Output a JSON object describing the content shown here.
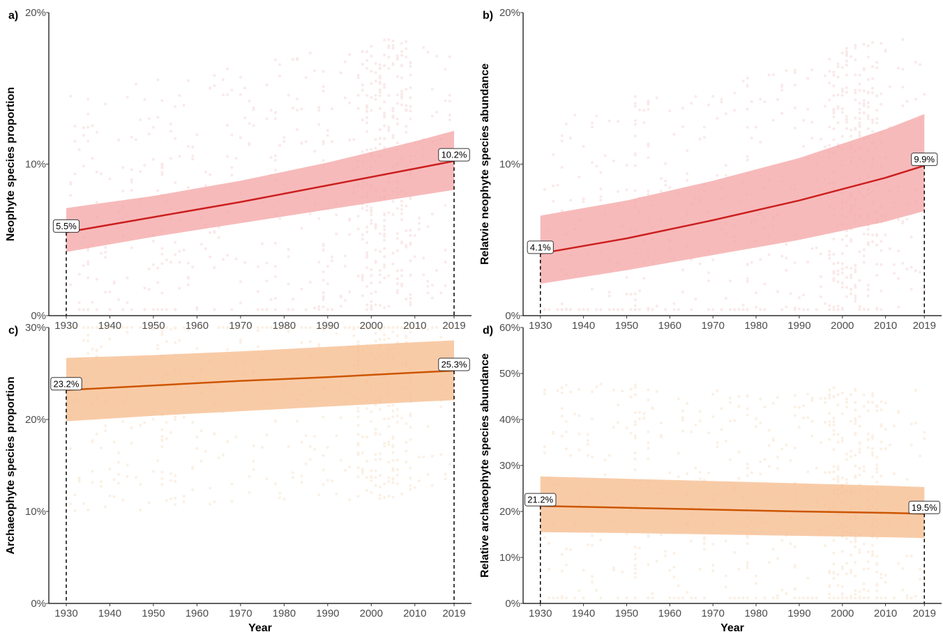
{
  "colors": {
    "neophyte_line": "#cc1f1f",
    "neophyte_band": "#f4a3a3",
    "neophyte_points": "#e06060",
    "archaeophyte_line": "#cc5500",
    "archaeophyte_band": "#f5b98a",
    "archaeophyte_points": "#e8913a"
  },
  "xlabel": "Year",
  "chart_data": [
    {
      "panel": "a)",
      "type": "line",
      "ylabel": "Neophyte species proportion",
      "xlabel": "",
      "x_ticks": [
        "1930",
        "1940",
        "1950",
        "1960",
        "1970",
        "1980",
        "1990",
        "2000",
        "2010",
        "2019"
      ],
      "y_ticks": [
        "0%",
        "10%",
        "20%"
      ],
      "xlim": [
        1926,
        2023
      ],
      "ylim": [
        0,
        20
      ],
      "x": [
        1930,
        1950,
        1970,
        1990,
        2010,
        2019
      ],
      "series": [
        {
          "values": [
            5.5,
            6.5,
            7.5,
            8.6,
            9.7,
            10.2
          ]
        }
      ],
      "band_lower": [
        4.2,
        5.2,
        6.1,
        7.0,
        7.9,
        8.3
      ],
      "band_upper": [
        7.1,
        7.9,
        8.9,
        10.1,
        11.5,
        12.2
      ],
      "end_labels": [
        "5.5%",
        "10.2%"
      ],
      "points": "scatter",
      "palette": "neophyte"
    },
    {
      "panel": "b)",
      "type": "line",
      "ylabel": "Relatvie neophyte species abundance",
      "xlabel": "",
      "x_ticks": [
        "1930",
        "1940",
        "1950",
        "1960",
        "1970",
        "1980",
        "1990",
        "2000",
        "2010",
        "2019"
      ],
      "y_ticks": [
        "0%",
        "10%",
        "20%"
      ],
      "xlim": [
        1926,
        2023
      ],
      "ylim": [
        0,
        20
      ],
      "x": [
        1930,
        1950,
        1970,
        1990,
        2010,
        2019
      ],
      "series": [
        {
          "values": [
            4.1,
            5.1,
            6.3,
            7.6,
            9.1,
            9.9
          ]
        }
      ],
      "band_lower": [
        2.1,
        3.0,
        4.0,
        5.0,
        6.2,
        6.9
      ],
      "band_upper": [
        6.6,
        7.6,
        8.9,
        10.4,
        12.3,
        13.3
      ],
      "end_labels": [
        "4.1%",
        "9.9%"
      ],
      "points": "scatter",
      "palette": "neophyte"
    },
    {
      "panel": "c)",
      "type": "line",
      "ylabel": "Archaeophyte species proportion",
      "xlabel": "Year",
      "x_ticks": [
        "1930",
        "1940",
        "1950",
        "1960",
        "1970",
        "1980",
        "1990",
        "2000",
        "2010",
        "2019"
      ],
      "y_ticks": [
        "0%",
        "10%",
        "20%",
        "30%"
      ],
      "xlim": [
        1926,
        2023
      ],
      "ylim": [
        0,
        30
      ],
      "x": [
        1930,
        1950,
        1970,
        1990,
        2010,
        2019
      ],
      "series": [
        {
          "values": [
            23.2,
            23.7,
            24.2,
            24.6,
            25.1,
            25.3
          ]
        }
      ],
      "band_lower": [
        19.8,
        20.4,
        20.9,
        21.4,
        21.9,
        22.1
      ],
      "band_upper": [
        26.7,
        27.0,
        27.4,
        27.9,
        28.4,
        28.6
      ],
      "end_labels": [
        "23.2%",
        "25.3%"
      ],
      "points": "scatter",
      "palette": "archaeophyte"
    },
    {
      "panel": "d)",
      "type": "line",
      "ylabel": "Relative archaeophyte species abundance",
      "xlabel": "Year",
      "x_ticks": [
        "1930",
        "1940",
        "1950",
        "1960",
        "1970",
        "1980",
        "1990",
        "2000",
        "2010",
        "2019"
      ],
      "y_ticks": [
        "0%",
        "10%",
        "20%",
        "30%",
        "40%",
        "50%",
        "60%"
      ],
      "xlim": [
        1926,
        2023
      ],
      "ylim": [
        0,
        60
      ],
      "x": [
        1930,
        1950,
        1970,
        1990,
        2010,
        2019
      ],
      "series": [
        {
          "values": [
            21.2,
            20.8,
            20.4,
            20.0,
            19.7,
            19.5
          ]
        }
      ],
      "band_lower": [
        15.5,
        15.3,
        15.0,
        14.7,
        14.4,
        14.2
      ],
      "band_upper": [
        27.6,
        27.1,
        26.6,
        26.1,
        25.6,
        25.3
      ],
      "end_labels": [
        "21.2%",
        "19.5%"
      ],
      "points": "scatter",
      "palette": "archaeophyte"
    }
  ]
}
